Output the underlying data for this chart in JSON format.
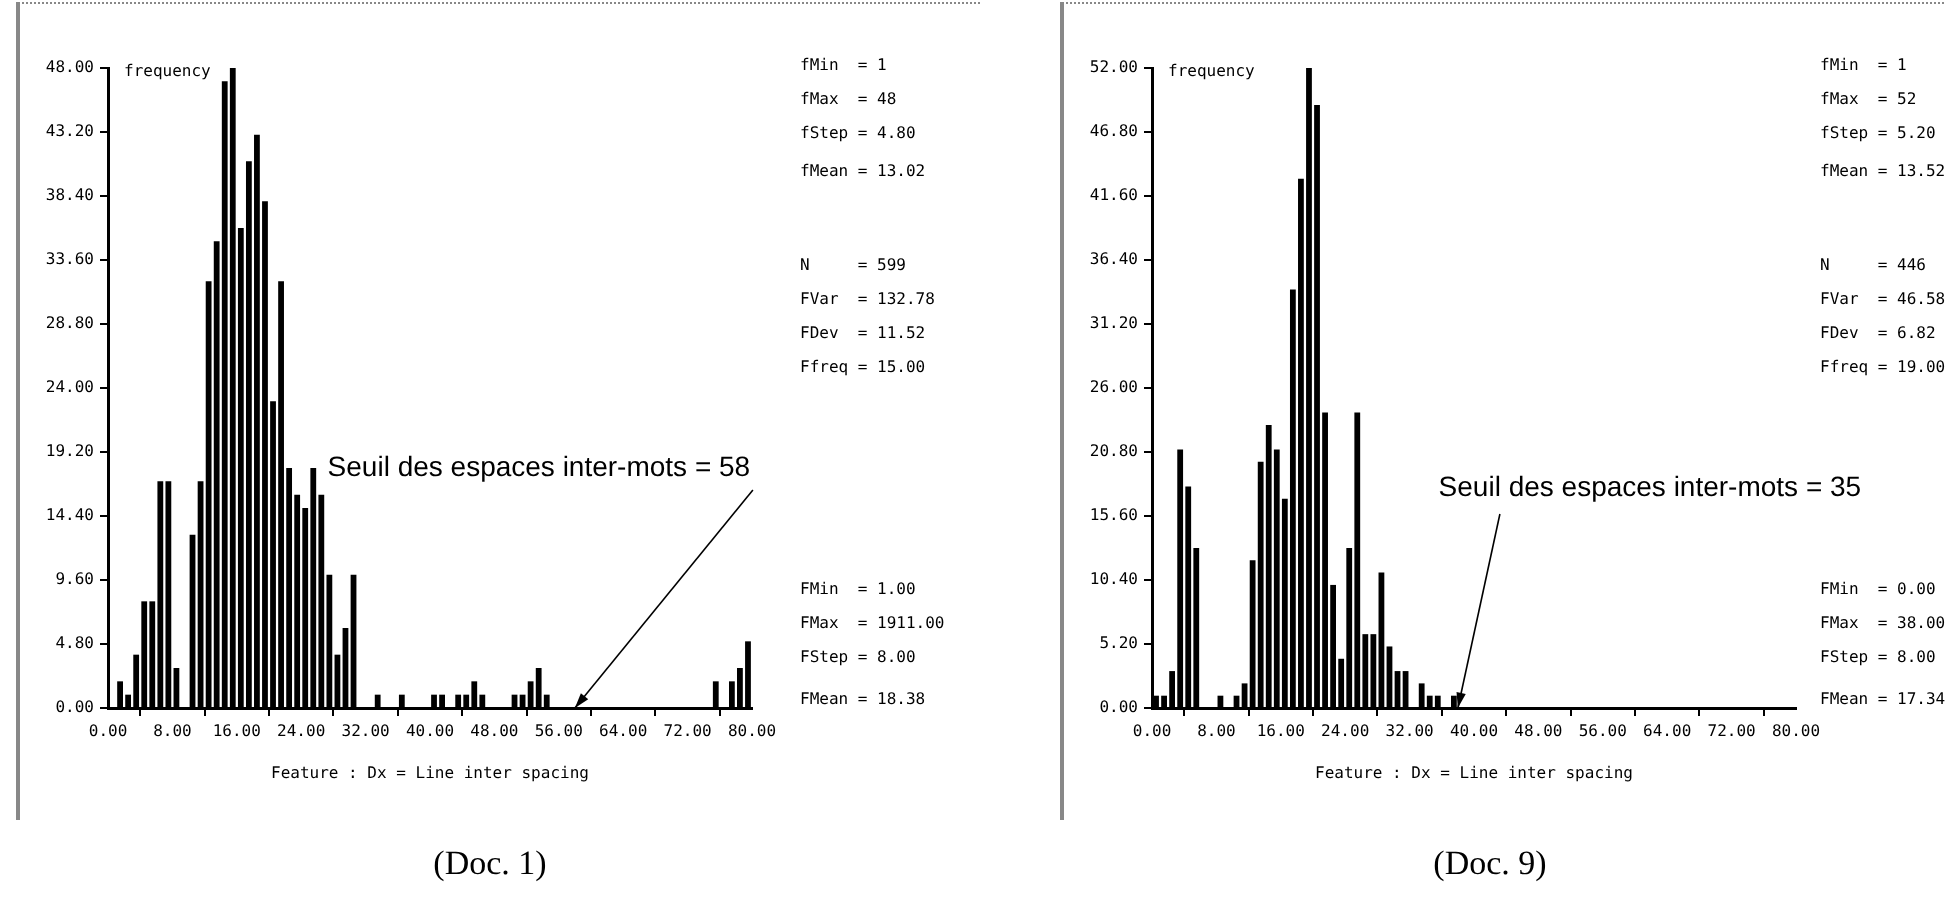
{
  "chart_data": [
    {
      "type": "histogram",
      "title": "(Doc. 1)",
      "xlabel": "Feature : Dx = Line inter spacing",
      "ylabel": "frequency",
      "color": "#000000",
      "bins": [
        0,
        1,
        2,
        3,
        4,
        5,
        6,
        7,
        8,
        9,
        10,
        11,
        12,
        13,
        14,
        15,
        16,
        17,
        18,
        19,
        20,
        21,
        22,
        23,
        24,
        25,
        26,
        27,
        28,
        29,
        30,
        31,
        32,
        33,
        34,
        35,
        36,
        37,
        38,
        39,
        40,
        41,
        42,
        43,
        44,
        45,
        46,
        47,
        48,
        49,
        50,
        51,
        52,
        53,
        54,
        55,
        56,
        57,
        58,
        59,
        60,
        61,
        62,
        63,
        64,
        65,
        66,
        67,
        68,
        69,
        70,
        71,
        72,
        73,
        74,
        75,
        76,
        77,
        78,
        79,
        80
      ],
      "values": [
        0,
        2,
        1,
        4,
        8,
        8,
        17,
        17,
        3,
        0,
        13,
        17,
        32,
        35,
        47,
        48,
        36,
        41,
        43,
        38,
        23,
        32,
        18,
        16,
        15,
        18,
        16,
        10,
        4,
        6,
        10,
        0,
        0,
        1,
        0,
        0,
        1,
        0,
        0,
        0,
        1,
        1,
        0,
        1,
        1,
        2,
        1,
        0,
        0,
        0,
        1,
        1,
        2,
        3,
        1,
        0,
        0,
        0,
        0,
        0,
        0,
        0,
        0,
        0,
        0,
        0,
        0,
        0,
        0,
        0,
        0,
        0,
        0,
        0,
        0,
        2,
        0,
        2,
        3,
        5
      ],
      "xlim": [
        0,
        80
      ],
      "xticks": [
        {
          "value": 0,
          "label": "0.00"
        },
        {
          "value": 8,
          "label": "8.00"
        },
        {
          "value": 16,
          "label": "16.00"
        },
        {
          "value": 24,
          "label": "24.00"
        },
        {
          "value": 32,
          "label": "32.00"
        },
        {
          "value": 40,
          "label": "40.00"
        },
        {
          "value": 48,
          "label": "48.00"
        },
        {
          "value": 56,
          "label": "56.00"
        },
        {
          "value": 64,
          "label": "64.00"
        },
        {
          "value": 72,
          "label": "72.00"
        },
        {
          "value": 80,
          "label": "80.00"
        }
      ],
      "ylim": [
        0,
        48
      ],
      "yticks": [
        {
          "value": 0,
          "label": "0.00"
        },
        {
          "value": 4.8,
          "label": "4.80"
        },
        {
          "value": 9.6,
          "label": "9.60"
        },
        {
          "value": 14.4,
          "label": "14.40"
        },
        {
          "value": 19.2,
          "label": "19.20"
        },
        {
          "value": 24,
          "label": "24.00"
        },
        {
          "value": 28.8,
          "label": "28.80"
        },
        {
          "value": 33.6,
          "label": "33.60"
        },
        {
          "value": 38.4,
          "label": "38.40"
        },
        {
          "value": 43.2,
          "label": "43.20"
        },
        {
          "value": 48,
          "label": "48.00"
        }
      ],
      "annotations": [
        {
          "text": "Seuil des espaces inter-mots = 58",
          "x": 58,
          "y": 0
        },
        "fMin  = 1",
        "fMax  = 48",
        "fStep = 4.80",
        "fMean = 13.02",
        "N     = 599",
        "FVar  = 132.78",
        "FDev  = 11.52",
        "Ffreq = 15.00",
        "FMin  = 1.00",
        "FMax  = 1911.00",
        "FStep = 8.00",
        "FMean = 18.38"
      ]
    },
    {
      "type": "histogram",
      "title": "(Doc. 9)",
      "xlabel": "Feature : Dx = Line inter spacing",
      "ylabel": "frequency",
      "color": "#000000",
      "bins": [
        0,
        1,
        2,
        3,
        4,
        5,
        6,
        7,
        8,
        9,
        10,
        11,
        12,
        13,
        14,
        15,
        16,
        17,
        18,
        19,
        20,
        21,
        22,
        23,
        24,
        25,
        26,
        27,
        28,
        29,
        30,
        31,
        32,
        33,
        34,
        35,
        36,
        37,
        38,
        39,
        40,
        41,
        42,
        43,
        44,
        45,
        46,
        47,
        48,
        49,
        50,
        51,
        52,
        53,
        54,
        55,
        56,
        57,
        58,
        59,
        60,
        61,
        62,
        63,
        64,
        65,
        66,
        67,
        68,
        69,
        70,
        71,
        72,
        73,
        74,
        75,
        76,
        77,
        78,
        79,
        80
      ],
      "values": [
        1,
        1,
        3,
        21,
        18,
        13,
        0,
        0,
        1,
        0,
        1,
        2,
        12,
        20,
        23,
        21,
        17,
        34,
        43,
        52,
        49,
        24,
        10,
        4,
        13,
        24,
        6,
        6,
        11,
        5,
        3,
        3,
        0,
        2,
        1,
        1,
        0,
        1,
        0,
        0,
        0,
        0,
        0,
        0,
        0,
        0,
        0,
        0,
        0,
        0,
        0,
        0,
        0,
        0,
        0,
        0,
        0,
        0,
        0,
        0,
        0,
        0,
        0,
        0,
        0,
        0,
        0,
        0,
        0,
        0,
        0,
        0,
        0,
        0,
        0,
        0,
        0,
        0,
        0,
        0
      ],
      "xlim": [
        0,
        80
      ],
      "xticks": [
        {
          "value": 0,
          "label": "0.00"
        },
        {
          "value": 8,
          "label": "8.00"
        },
        {
          "value": 16,
          "label": "16.00"
        },
        {
          "value": 24,
          "label": "24.00"
        },
        {
          "value": 32,
          "label": "32.00"
        },
        {
          "value": 40,
          "label": "40.00"
        },
        {
          "value": 48,
          "label": "48.00"
        },
        {
          "value": 56,
          "label": "56.00"
        },
        {
          "value": 64,
          "label": "64.00"
        },
        {
          "value": 72,
          "label": "72.00"
        },
        {
          "value": 80,
          "label": "80.00"
        }
      ],
      "ylim": [
        0,
        52
      ],
      "yticks": [
        {
          "value": 0,
          "label": "0.00"
        },
        {
          "value": 5.2,
          "label": "5.20"
        },
        {
          "value": 10.4,
          "label": "10.40"
        },
        {
          "value": 15.6,
          "label": "15.60"
        },
        {
          "value": 20.8,
          "label": "20.80"
        },
        {
          "value": 26,
          "label": "26.00"
        },
        {
          "value": 31.2,
          "label": "31.20"
        },
        {
          "value": 36.4,
          "label": "36.40"
        },
        {
          "value": 41.6,
          "label": "41.60"
        },
        {
          "value": 46.8,
          "label": "46.80"
        },
        {
          "value": 52,
          "label": "52.00"
        }
      ],
      "annotations": [
        {
          "text": "Seuil des espaces inter-mots = 35",
          "x": 38,
          "y": 0
        },
        "fMin  = 1",
        "fMax  = 52",
        "fStep = 5.20",
        "fMean = 13.52",
        "N     = 446",
        "FVar  = 46.58",
        "FDev  = 6.82",
        "Ffreq = 19.00",
        "FMin  = 0.00",
        "FMax  = 38.00",
        "FStep = 8.00",
        "FMean = 17.34"
      ]
    }
  ]
}
